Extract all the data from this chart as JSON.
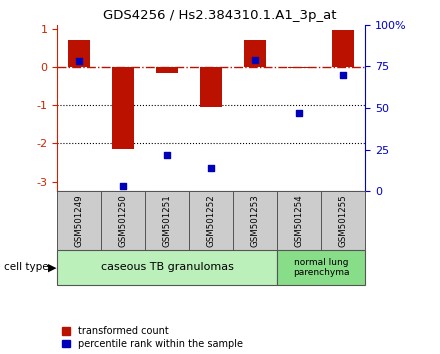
{
  "title": "GDS4256 / Hs2.384310.1.A1_3p_at",
  "samples": [
    "GSM501249",
    "GSM501250",
    "GSM501251",
    "GSM501252",
    "GSM501253",
    "GSM501254",
    "GSM501255"
  ],
  "red_bars": [
    0.7,
    -2.15,
    -0.15,
    -1.05,
    0.7,
    -0.02,
    0.97
  ],
  "blue_dots_pct": [
    78,
    3,
    22,
    14,
    79,
    47,
    70
  ],
  "ylim_left": [
    -3.25,
    1.1
  ],
  "ylim_right": [
    0,
    100
  ],
  "dotline_y": [
    -1,
    -2
  ],
  "groups": [
    {
      "label": "caseous TB granulomas",
      "n_samples": 5,
      "color": "#bbf0bb"
    },
    {
      "label": "normal lung\nparenchyma",
      "n_samples": 2,
      "color": "#88dd88"
    }
  ],
  "bar_color": "#bb1100",
  "dot_color": "#0000bb",
  "bar_width": 0.5,
  "xlabel_area_color": "#cccccc",
  "legend_red_label": "transformed count",
  "legend_blue_label": "percentile rank within the sample",
  "cell_type_label": "cell type",
  "left_tick_color": "#cc2200",
  "right_tick_color": "#0000cc",
  "left_yticks": [
    -3,
    -2,
    -1,
    0,
    1
  ],
  "right_yticks": [
    0,
    25,
    50,
    75,
    100
  ],
  "right_yticklabels": [
    "0",
    "25",
    "50",
    "75",
    "100%"
  ]
}
